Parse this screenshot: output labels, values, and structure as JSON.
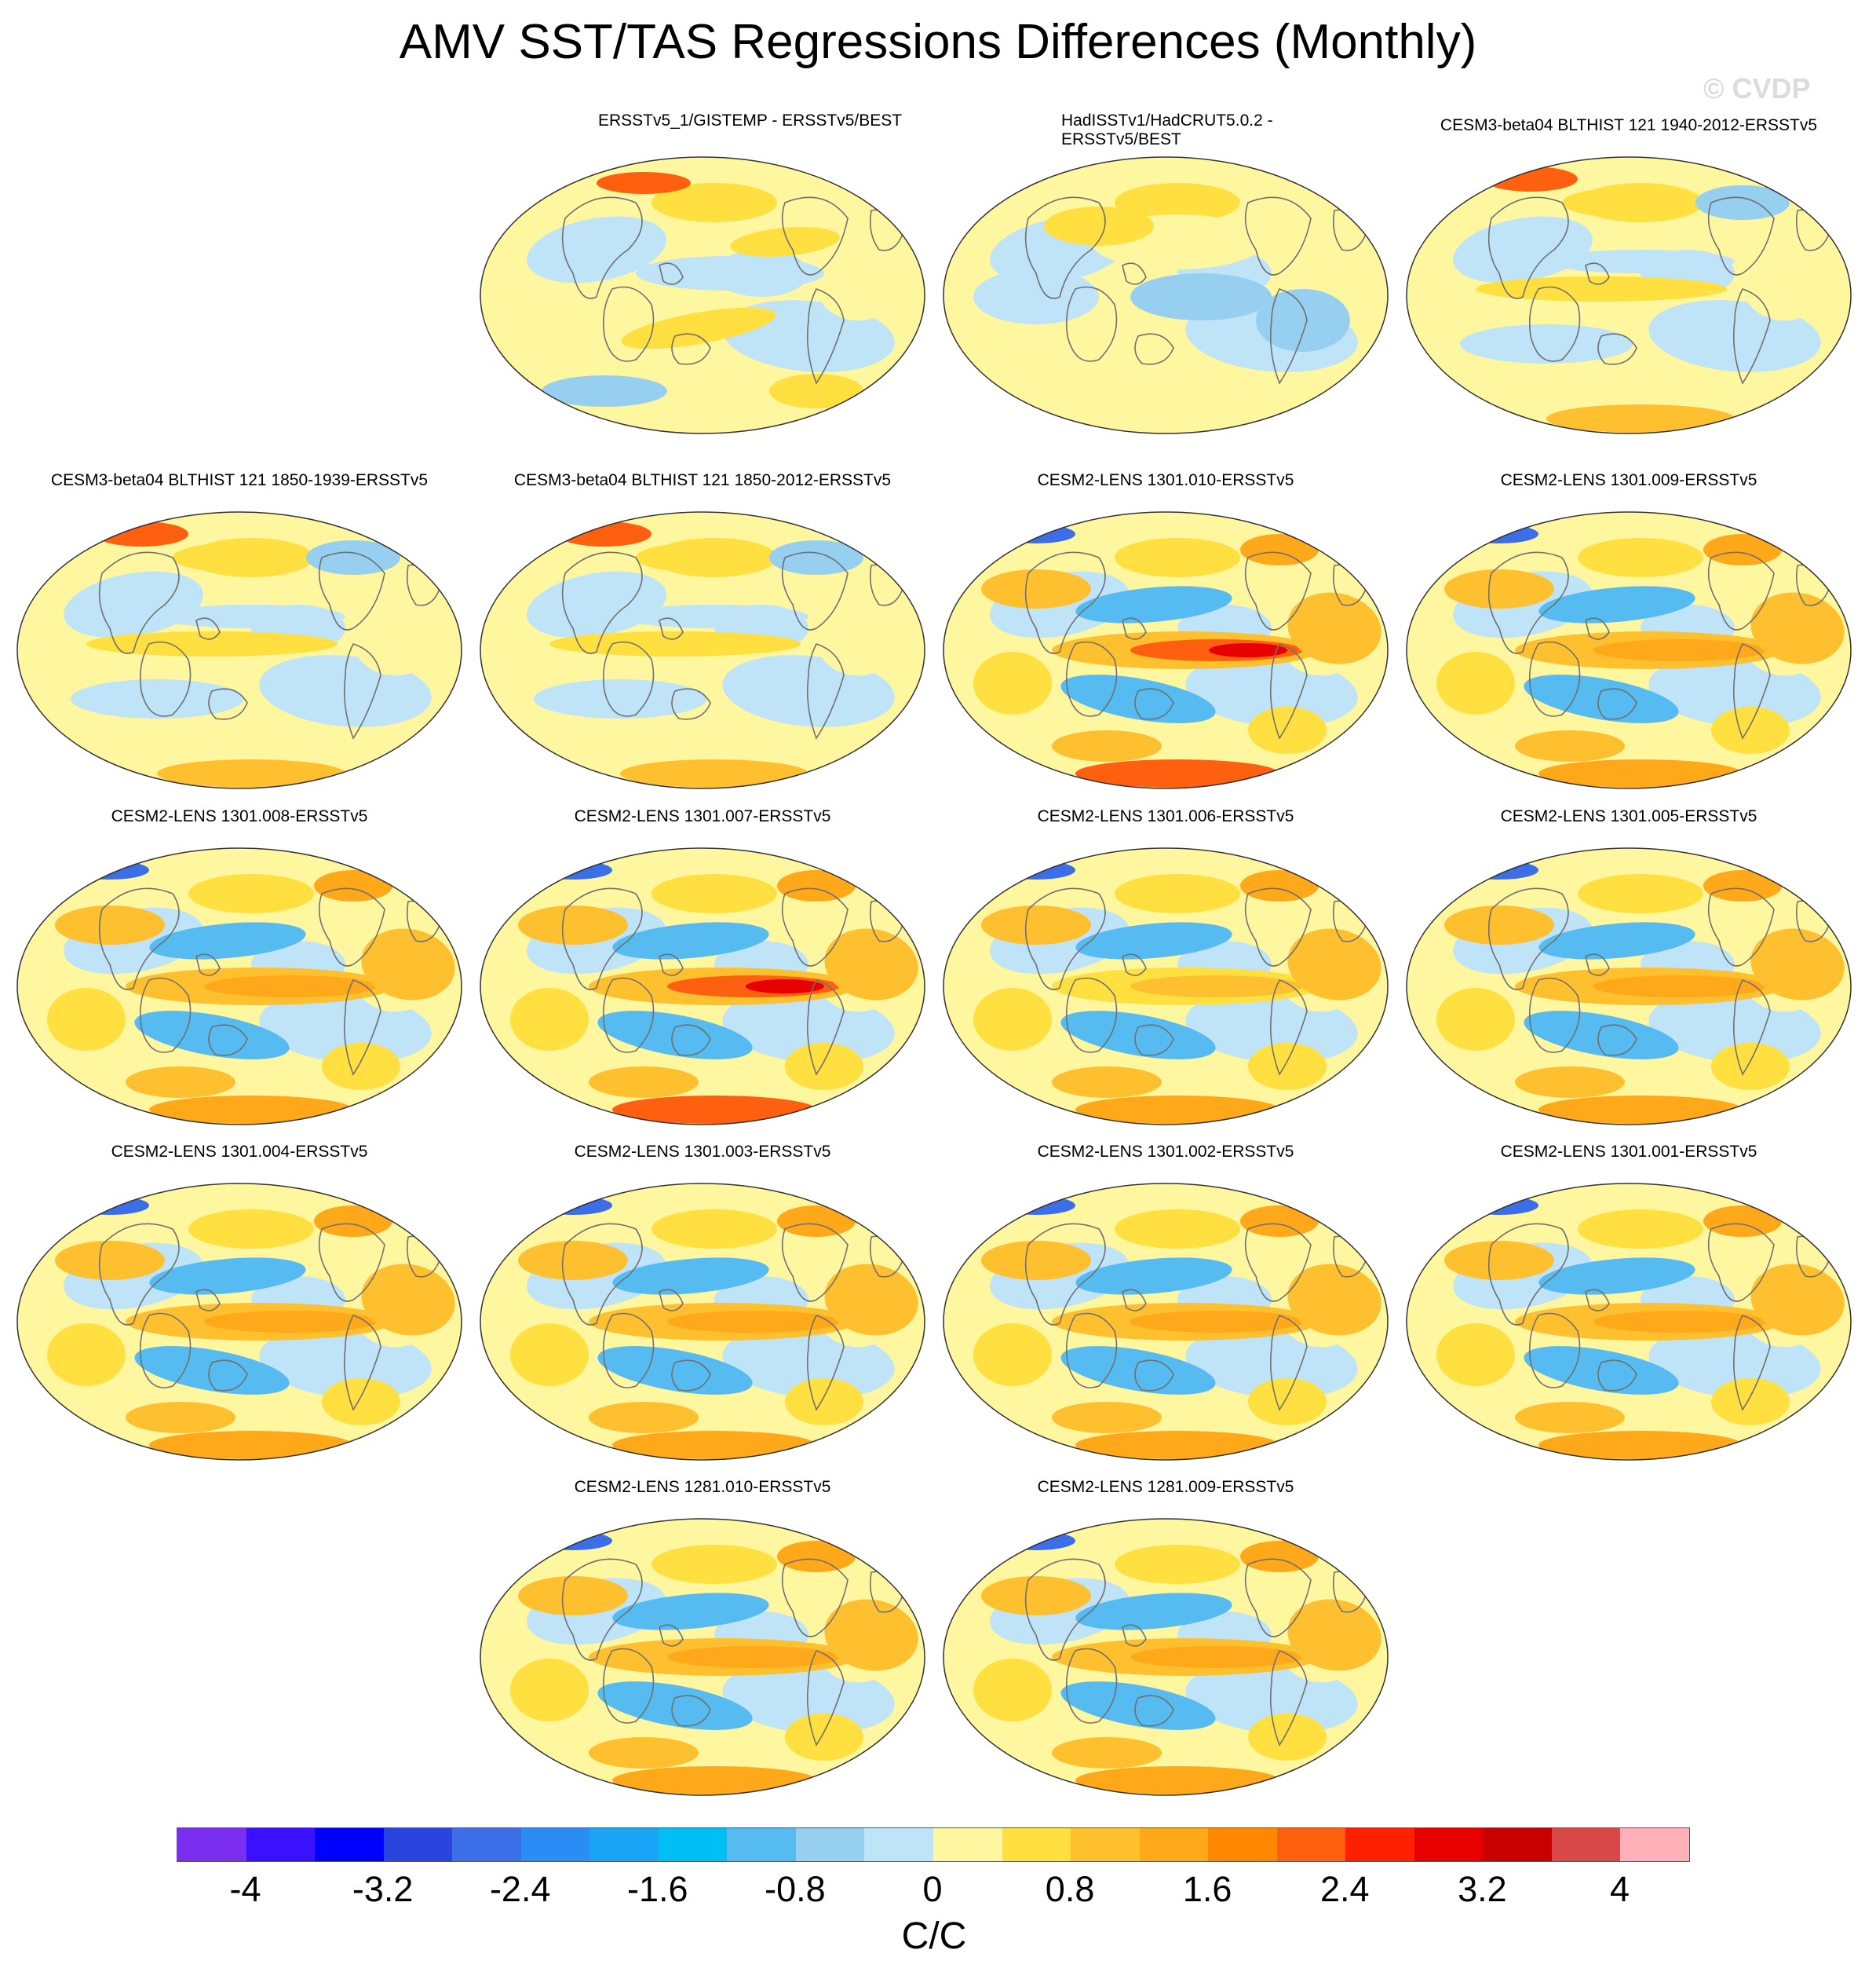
{
  "title": "AMV SST/TAS Regressions Differences (Monthly)",
  "watermark": "© CVDP",
  "panels": [
    {
      "id": "p0",
      "title": "ERSSTv5_1/GISTEMP - ERSSTv5/BEST",
      "pattern": "obs"
    },
    {
      "id": "p1",
      "title": "HadISSTv1/HadCRUT5.0.2 - ERSSTv5/BEST",
      "pattern": "obs2"
    },
    {
      "id": "p2",
      "title": "CESM3-beta04 BLTHIST 121 1940-2012-ERSSTv5",
      "pattern": "model_weak"
    },
    {
      "id": "p3",
      "title": "CESM3-beta04 BLTHIST 121 1850-1939-ERSSTv5",
      "pattern": "model_weak"
    },
    {
      "id": "p4",
      "title": "CESM3-beta04 BLTHIST 121 1850-2012-ERSSTv5",
      "pattern": "model_weak"
    },
    {
      "id": "p5",
      "title": "CESM2-LENS 1301.010-ERSSTv5",
      "pattern": "enso_strong"
    },
    {
      "id": "p6",
      "title": "CESM2-LENS 1301.009-ERSSTv5",
      "pattern": "enso"
    },
    {
      "id": "p7",
      "title": "CESM2-LENS 1301.008-ERSSTv5",
      "pattern": "enso"
    },
    {
      "id": "p8",
      "title": "CESM2-LENS 1301.007-ERSSTv5",
      "pattern": "enso_strong"
    },
    {
      "id": "p9",
      "title": "CESM2-LENS 1301.006-ERSSTv5",
      "pattern": "enso_weak"
    },
    {
      "id": "p10",
      "title": "CESM2-LENS 1301.005-ERSSTv5",
      "pattern": "enso"
    },
    {
      "id": "p11",
      "title": "CESM2-LENS 1301.004-ERSSTv5",
      "pattern": "enso"
    },
    {
      "id": "p12",
      "title": "CESM2-LENS 1301.003-ERSSTv5",
      "pattern": "enso"
    },
    {
      "id": "p13",
      "title": "CESM2-LENS 1301.002-ERSSTv5",
      "pattern": "enso"
    },
    {
      "id": "p14",
      "title": "CESM2-LENS 1301.001-ERSSTv5",
      "pattern": "enso"
    },
    {
      "id": "p15",
      "title": "CESM2-LENS 1281.010-ERSSTv5",
      "pattern": "enso"
    },
    {
      "id": "p16",
      "title": "CESM2-LENS 1281.009-ERSSTv5",
      "pattern": "enso"
    }
  ],
  "colorbar": {
    "colors": [
      "#7a2ff0",
      "#3a10ff",
      "#0000ff",
      "#2a44e0",
      "#3c6ee8",
      "#2a8cf5",
      "#1aa4f5",
      "#00bff5",
      "#55bbf0",
      "#96cff0",
      "#bfe3f7",
      "#fff7a0",
      "#ffe040",
      "#ffc030",
      "#ffa81a",
      "#ff8800",
      "#ff6010",
      "#ff2000",
      "#e80000",
      "#c80000",
      "#d94848",
      "#ffb0b8"
    ],
    "ticks": [
      "-4",
      "-3.2",
      "-2.4",
      "-1.6",
      "-0.8",
      "0",
      "0.8",
      "1.6",
      "2.4",
      "3.2",
      "4"
    ],
    "units": "C/C"
  }
}
